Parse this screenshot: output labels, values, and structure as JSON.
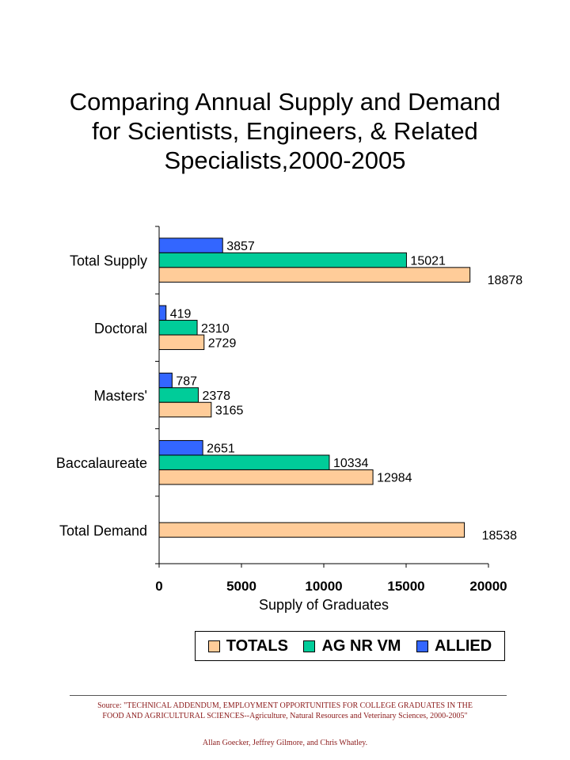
{
  "chart_data": {
    "type": "bar",
    "orientation": "horizontal",
    "title": "Comparing Annual Supply and Demand for Scientists, Engineers, & Related Specialists,2000-2005",
    "title_lines": [
      "Comparing Annual Supply and Demand",
      "for Scientists, Engineers, & Related",
      "Specialists,2000-2005"
    ],
    "xlabel": "Supply of Graduates",
    "ylabel": "",
    "xlim": [
      0,
      20000
    ],
    "x_ticks": [
      "0",
      "5000",
      "10000",
      "15000",
      "20000"
    ],
    "categories": [
      "Total Supply",
      "Doctoral",
      "Masters'",
      "Baccalaureate",
      "Total Demand"
    ],
    "series": [
      {
        "name": "ALLIED",
        "color": "#3366ff",
        "values": [
          3857,
          419,
          787,
          2651,
          null
        ]
      },
      {
        "name": "AG NR VM",
        "color": "#00cc99",
        "values": [
          15021,
          2310,
          2378,
          10334,
          null
        ]
      },
      {
        "name": "TOTALS",
        "color": "#ffcc99",
        "values": [
          18878,
          2729,
          3165,
          12984,
          18538
        ]
      }
    ],
    "legend_order": [
      "TOTALS",
      "AG NR VM",
      "ALLIED"
    ],
    "legend_position": "bottom",
    "grid": false
  },
  "footer": {
    "source_line1": "Source:  \"TECHNICAL ADDENDUM, EMPLOYMENT OPPORTUNITIES FOR COLLEGE GRADUATES IN THE",
    "source_line2": "FOOD AND AGRICULTURAL SCIENCES--Agriculture,  Natural Resources and Veterinary Sciences, 2000-2005\"",
    "authors": "Allan Goecker, Jeffrey Gilmore, and Chris Whatley."
  }
}
